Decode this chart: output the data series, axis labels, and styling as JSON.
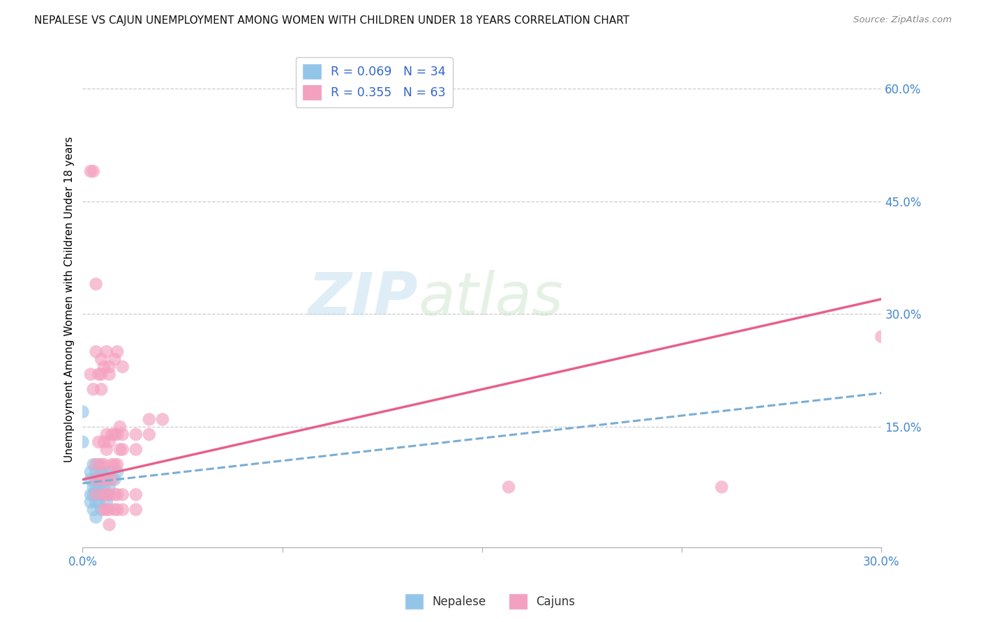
{
  "title": "NEPALESE VS CAJUN UNEMPLOYMENT AMONG WOMEN WITH CHILDREN UNDER 18 YEARS CORRELATION CHART",
  "source": "Source: ZipAtlas.com",
  "ylabel": "Unemployment Among Women with Children Under 18 years",
  "watermark_zip": "ZIP",
  "watermark_atlas": "atlas",
  "legend": {
    "nepalese": {
      "R": 0.069,
      "N": 34,
      "label": "Nepalese"
    },
    "cajuns": {
      "R": 0.355,
      "N": 63,
      "label": "Cajuns"
    }
  },
  "nepalese_color": "#92c5e8",
  "cajuns_color": "#f4a0bf",
  "nepalese_line_color": "#7aadd4",
  "cajuns_line_color": "#e8608a",
  "xlim": [
    0.0,
    0.3
  ],
  "ylim": [
    -0.01,
    0.65
  ],
  "x_ticks": [
    0.0,
    0.075,
    0.15,
    0.225,
    0.3
  ],
  "y_ticks": [
    0.15,
    0.3,
    0.45,
    0.6
  ],
  "y_tick_labels": [
    "15.0%",
    "30.0%",
    "45.0%",
    "60.0%"
  ],
  "nepalese_points": [
    [
      0.0,
      0.17
    ],
    [
      0.0,
      0.13
    ],
    [
      0.003,
      0.05
    ],
    [
      0.003,
      0.08
    ],
    [
      0.003,
      0.06
    ],
    [
      0.003,
      0.09
    ],
    [
      0.004,
      0.07
    ],
    [
      0.004,
      0.04
    ],
    [
      0.004,
      0.1
    ],
    [
      0.004,
      0.06
    ],
    [
      0.005,
      0.08
    ],
    [
      0.005,
      0.05
    ],
    [
      0.005,
      0.09
    ],
    [
      0.005,
      0.03
    ],
    [
      0.005,
      0.07
    ],
    [
      0.005,
      0.06
    ],
    [
      0.006,
      0.08
    ],
    [
      0.006,
      0.1
    ],
    [
      0.006,
      0.05
    ],
    [
      0.006,
      0.07
    ],
    [
      0.007,
      0.09
    ],
    [
      0.007,
      0.06
    ],
    [
      0.007,
      0.08
    ],
    [
      0.007,
      0.04
    ],
    [
      0.008,
      0.07
    ],
    [
      0.008,
      0.09
    ],
    [
      0.008,
      0.06
    ],
    [
      0.009,
      0.08
    ],
    [
      0.009,
      0.05
    ],
    [
      0.01,
      0.07
    ],
    [
      0.01,
      0.09
    ],
    [
      0.01,
      0.06
    ],
    [
      0.012,
      0.08
    ],
    [
      0.013,
      0.09
    ]
  ],
  "cajuns_points": [
    [
      0.003,
      0.49
    ],
    [
      0.004,
      0.49
    ],
    [
      0.003,
      0.22
    ],
    [
      0.004,
      0.2
    ],
    [
      0.005,
      0.34
    ],
    [
      0.005,
      0.25
    ],
    [
      0.005,
      0.1
    ],
    [
      0.005,
      0.08
    ],
    [
      0.005,
      0.06
    ],
    [
      0.006,
      0.22
    ],
    [
      0.006,
      0.13
    ],
    [
      0.007,
      0.24
    ],
    [
      0.007,
      0.2
    ],
    [
      0.007,
      0.22
    ],
    [
      0.007,
      0.1
    ],
    [
      0.007,
      0.08
    ],
    [
      0.008,
      0.23
    ],
    [
      0.008,
      0.13
    ],
    [
      0.008,
      0.1
    ],
    [
      0.008,
      0.06
    ],
    [
      0.008,
      0.04
    ],
    [
      0.009,
      0.25
    ],
    [
      0.009,
      0.14
    ],
    [
      0.009,
      0.12
    ],
    [
      0.009,
      0.08
    ],
    [
      0.009,
      0.06
    ],
    [
      0.009,
      0.04
    ],
    [
      0.01,
      0.23
    ],
    [
      0.01,
      0.22
    ],
    [
      0.01,
      0.13
    ],
    [
      0.01,
      0.06
    ],
    [
      0.01,
      0.04
    ],
    [
      0.01,
      0.02
    ],
    [
      0.011,
      0.14
    ],
    [
      0.011,
      0.1
    ],
    [
      0.011,
      0.08
    ],
    [
      0.012,
      0.24
    ],
    [
      0.012,
      0.14
    ],
    [
      0.012,
      0.1
    ],
    [
      0.012,
      0.06
    ],
    [
      0.012,
      0.04
    ],
    [
      0.013,
      0.25
    ],
    [
      0.013,
      0.14
    ],
    [
      0.013,
      0.1
    ],
    [
      0.013,
      0.06
    ],
    [
      0.013,
      0.04
    ],
    [
      0.014,
      0.15
    ],
    [
      0.014,
      0.12
    ],
    [
      0.015,
      0.23
    ],
    [
      0.015,
      0.14
    ],
    [
      0.015,
      0.12
    ],
    [
      0.015,
      0.06
    ],
    [
      0.015,
      0.04
    ],
    [
      0.02,
      0.14
    ],
    [
      0.02,
      0.12
    ],
    [
      0.02,
      0.06
    ],
    [
      0.02,
      0.04
    ],
    [
      0.025,
      0.16
    ],
    [
      0.025,
      0.14
    ],
    [
      0.03,
      0.16
    ],
    [
      0.16,
      0.07
    ],
    [
      0.24,
      0.07
    ],
    [
      0.3,
      0.27
    ]
  ],
  "nepalese_line": {
    "x0": 0.0,
    "x1": 0.3,
    "y0": 0.075,
    "y1": 0.195
  },
  "cajuns_line": {
    "x0": 0.0,
    "x1": 0.3,
    "y0": 0.08,
    "y1": 0.32
  }
}
